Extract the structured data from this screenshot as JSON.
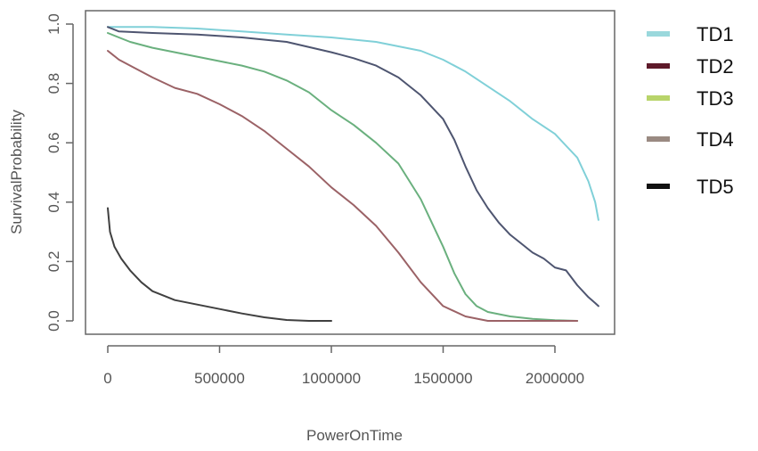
{
  "chart_data": {
    "type": "line",
    "title": "",
    "xlabel": "PowerOnTime",
    "ylabel": "SurvivalProbability",
    "xlim": [
      0,
      2200000
    ],
    "ylim": [
      0,
      1
    ],
    "x_ticks": [
      "0",
      "500000",
      "1000000",
      "1500000",
      "2000000"
    ],
    "x_tick_values": [
      0,
      500000,
      1000000,
      1500000,
      2000000
    ],
    "y_ticks": [
      "0.0",
      "0.2",
      "0.4",
      "0.6",
      "0.8",
      "1.0"
    ],
    "y_tick_values": [
      0,
      0.2,
      0.4,
      0.6,
      0.8,
      1.0
    ],
    "legend_position": "right",
    "legend": [
      {
        "name": "TD1",
        "color": "#9ad8dc"
      },
      {
        "name": "TD2",
        "color": "#5e1a2a"
      },
      {
        "name": "TD3",
        "color": "#b8d46a"
      },
      {
        "name": "TD4",
        "color": "#9a8a82"
      },
      {
        "name": "TD5",
        "color": "#111111"
      }
    ],
    "series": [
      {
        "name": "TD1",
        "color": "#80d0d8",
        "points": [
          [
            0,
            0.99
          ],
          [
            200000,
            0.99
          ],
          [
            400000,
            0.985
          ],
          [
            600000,
            0.975
          ],
          [
            800000,
            0.965
          ],
          [
            1000000,
            0.955
          ],
          [
            1200000,
            0.94
          ],
          [
            1400000,
            0.91
          ],
          [
            1500000,
            0.88
          ],
          [
            1600000,
            0.84
          ],
          [
            1700000,
            0.79
          ],
          [
            1800000,
            0.74
          ],
          [
            1900000,
            0.68
          ],
          [
            2000000,
            0.63
          ],
          [
            2050000,
            0.59
          ],
          [
            2100000,
            0.55
          ],
          [
            2150000,
            0.47
          ],
          [
            2180000,
            0.4
          ],
          [
            2195000,
            0.34
          ]
        ]
      },
      {
        "name": "TD2",
        "color": "#4e5570",
        "points": [
          [
            0,
            0.99
          ],
          [
            50000,
            0.975
          ],
          [
            200000,
            0.97
          ],
          [
            400000,
            0.965
          ],
          [
            600000,
            0.955
          ],
          [
            800000,
            0.94
          ],
          [
            1000000,
            0.905
          ],
          [
            1100000,
            0.885
          ],
          [
            1200000,
            0.86
          ],
          [
            1300000,
            0.82
          ],
          [
            1400000,
            0.76
          ],
          [
            1500000,
            0.68
          ],
          [
            1550000,
            0.61
          ],
          [
            1600000,
            0.52
          ],
          [
            1650000,
            0.44
          ],
          [
            1700000,
            0.38
          ],
          [
            1750000,
            0.33
          ],
          [
            1800000,
            0.29
          ],
          [
            1850000,
            0.26
          ],
          [
            1900000,
            0.23
          ],
          [
            1950000,
            0.21
          ],
          [
            2000000,
            0.18
          ],
          [
            2050000,
            0.17
          ],
          [
            2100000,
            0.12
          ],
          [
            2150000,
            0.08
          ],
          [
            2180000,
            0.06
          ],
          [
            2195000,
            0.05
          ]
        ]
      },
      {
        "name": "TD3",
        "color": "#6ab07e",
        "points": [
          [
            0,
            0.97
          ],
          [
            100000,
            0.94
          ],
          [
            200000,
            0.92
          ],
          [
            300000,
            0.905
          ],
          [
            400000,
            0.89
          ],
          [
            500000,
            0.875
          ],
          [
            600000,
            0.86
          ],
          [
            700000,
            0.84
          ],
          [
            800000,
            0.81
          ],
          [
            900000,
            0.77
          ],
          [
            1000000,
            0.71
          ],
          [
            1100000,
            0.66
          ],
          [
            1200000,
            0.6
          ],
          [
            1300000,
            0.53
          ],
          [
            1400000,
            0.41
          ],
          [
            1450000,
            0.33
          ],
          [
            1500000,
            0.25
          ],
          [
            1550000,
            0.16
          ],
          [
            1600000,
            0.09
          ],
          [
            1650000,
            0.05
          ],
          [
            1700000,
            0.03
          ],
          [
            1800000,
            0.015
          ],
          [
            1900000,
            0.007
          ],
          [
            2000000,
            0.002
          ],
          [
            2100000,
            0.0
          ]
        ]
      },
      {
        "name": "TD4",
        "color": "#9b6266",
        "points": [
          [
            0,
            0.91
          ],
          [
            50000,
            0.88
          ],
          [
            100000,
            0.86
          ],
          [
            200000,
            0.82
          ],
          [
            300000,
            0.785
          ],
          [
            400000,
            0.765
          ],
          [
            500000,
            0.73
          ],
          [
            600000,
            0.69
          ],
          [
            700000,
            0.64
          ],
          [
            800000,
            0.58
          ],
          [
            900000,
            0.52
          ],
          [
            1000000,
            0.45
          ],
          [
            1100000,
            0.39
          ],
          [
            1200000,
            0.32
          ],
          [
            1300000,
            0.23
          ],
          [
            1400000,
            0.13
          ],
          [
            1500000,
            0.05
          ],
          [
            1600000,
            0.015
          ],
          [
            1700000,
            0.0
          ],
          [
            2100000,
            0.0
          ]
        ]
      },
      {
        "name": "TD5",
        "color": "#404040",
        "points": [
          [
            0,
            0.38
          ],
          [
            10000,
            0.3
          ],
          [
            30000,
            0.25
          ],
          [
            60000,
            0.21
          ],
          [
            100000,
            0.17
          ],
          [
            150000,
            0.13
          ],
          [
            200000,
            0.1
          ],
          [
            300000,
            0.07
          ],
          [
            400000,
            0.055
          ],
          [
            500000,
            0.04
          ],
          [
            600000,
            0.025
          ],
          [
            700000,
            0.012
          ],
          [
            800000,
            0.003
          ],
          [
            900000,
            0.0
          ],
          [
            1000000,
            0.0
          ]
        ]
      }
    ]
  }
}
